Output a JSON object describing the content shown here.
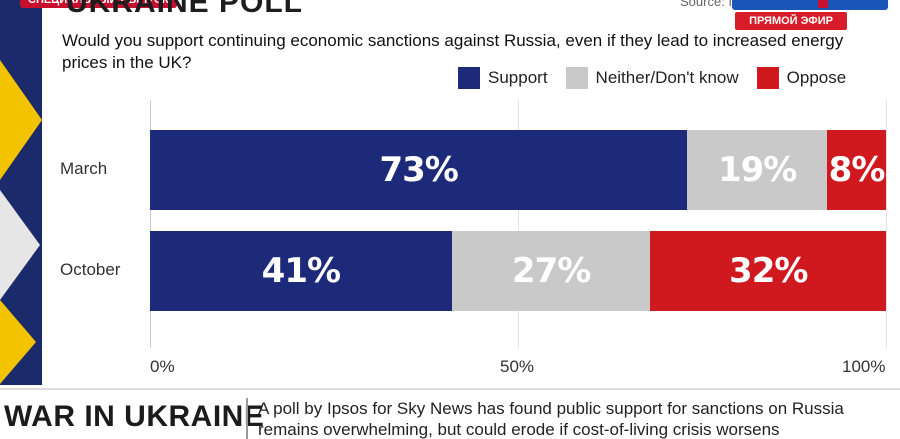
{
  "header": {
    "badge": "СПЕЦИАЛЬНЫЙ ВЫПУСК",
    "title": "UKRAINE POLL",
    "source": "Source: Ipsos",
    "live": "ПРЯМОЙ ЭФИР"
  },
  "chart_data": {
    "type": "bar",
    "orientation": "horizontal-stacked",
    "title": "UKRAINE POLL",
    "subtitle": "Would you support continuing economic sanctions against Russia, even if they lead to increased energy prices in the UK?",
    "categories": [
      "March",
      "October"
    ],
    "series": [
      {
        "name": "Support",
        "values": [
          73,
          41
        ],
        "color": "#1d2a7a"
      },
      {
        "name": "Neither/Don't know",
        "values": [
          19,
          27
        ],
        "color": "#c9c9c9"
      },
      {
        "name": "Oppose",
        "values": [
          8,
          32
        ],
        "color": "#d0181f"
      }
    ],
    "value_labels": [
      [
        "73%",
        "19%",
        "8%"
      ],
      [
        "41%",
        "27%",
        "32%"
      ]
    ],
    "xticks": [
      "0%",
      "50%",
      "100%"
    ],
    "xlim": [
      0,
      100
    ],
    "legend": "top-right",
    "grid": true
  },
  "banner": {
    "title": "WAR IN UKRAINE",
    "text": "A poll by Ipsos for Sky News has found public support for sanctions on Russia remains overwhelming, but could erode if cost-of-living crisis worsens"
  }
}
